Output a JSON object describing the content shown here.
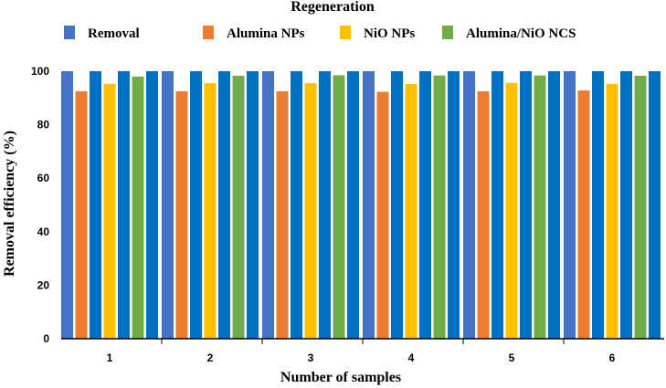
{
  "chart_data": {
    "type": "bar",
    "title": "Regeneration",
    "xlabel": "Number of samples",
    "ylabel": "Removal efficiency (%)",
    "ylim": [
      0,
      100
    ],
    "yticks": [
      "0",
      "20",
      "40",
      "60",
      "80",
      "100"
    ],
    "categories": [
      "1",
      "2",
      "3",
      "4",
      "5",
      "6"
    ],
    "legend_position": "top",
    "grid": false,
    "series": [
      {
        "name": "Removal",
        "color": "#4472C4",
        "values": [
          100,
          100,
          100,
          100,
          100,
          100
        ]
      },
      {
        "name": "Alumina NPs",
        "color": "#ED7D31",
        "values": [
          92.5,
          92.5,
          92.5,
          92.3,
          92.5,
          92.8
        ]
      },
      {
        "name": "",
        "color": "#0070C0",
        "values": [
          100,
          100,
          100,
          100,
          100,
          100
        ]
      },
      {
        "name": "NiO NPs",
        "color": "#FFC000",
        "values": [
          95.3,
          95.5,
          95.5,
          95.2,
          95.6,
          95.3
        ]
      },
      {
        "name": "",
        "color": "#0070C0",
        "values": [
          100,
          100,
          100,
          100,
          100,
          100
        ]
      },
      {
        "name": "Alumina/NiO NCS",
        "color": "#70AD47",
        "values": [
          98,
          98.3,
          98.5,
          98.4,
          98.4,
          98.3
        ]
      },
      {
        "name": "",
        "color": "#0070C0",
        "values": [
          100,
          100,
          100,
          100,
          100,
          100
        ]
      }
    ]
  }
}
